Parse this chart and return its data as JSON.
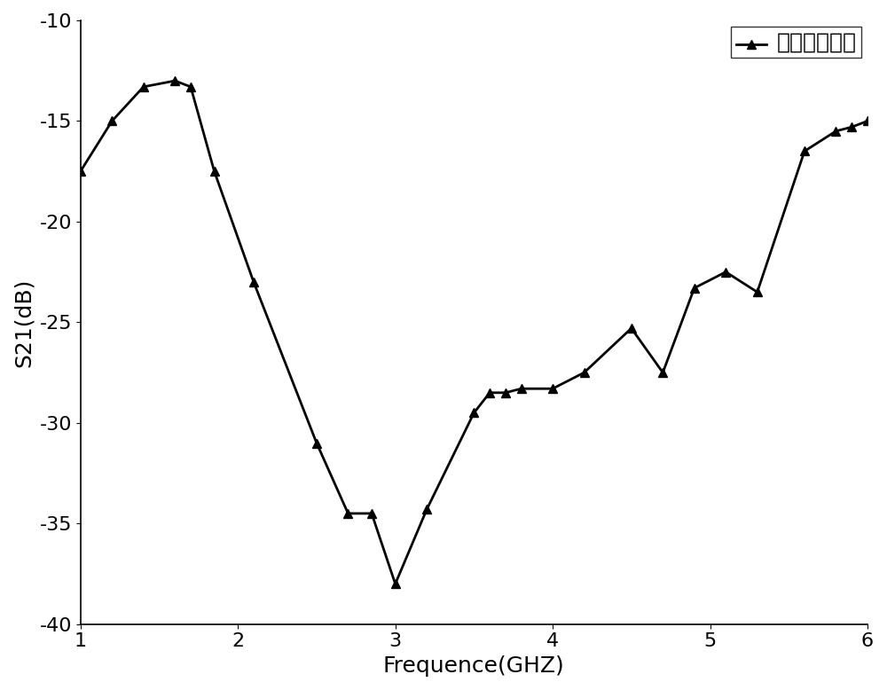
{
  "x": [
    1.0,
    1.2,
    1.4,
    1.6,
    1.7,
    1.85,
    2.1,
    2.5,
    2.7,
    2.85,
    3.0,
    3.2,
    3.5,
    3.6,
    3.7,
    3.8,
    4.0,
    4.2,
    4.5,
    4.7,
    4.9,
    5.1,
    5.3,
    5.6,
    5.8,
    5.9,
    6.0
  ],
  "y": [
    -17.5,
    -15.0,
    -13.3,
    -13.0,
    -13.3,
    -17.5,
    -23.0,
    -31.0,
    -34.5,
    -34.5,
    -38.0,
    -34.3,
    -29.5,
    -28.5,
    -28.5,
    -28.3,
    -28.3,
    -27.5,
    -25.3,
    -27.5,
    -23.3,
    -22.5,
    -23.5,
    -16.5,
    -15.5,
    -15.3,
    -15.0
  ],
  "line_color": "#000000",
  "marker": "^",
  "marker_size": 7,
  "line_width": 2.0,
  "xlabel": "Frequence(GHZ)",
  "ylabel": "S21(dB)",
  "xlim": [
    1,
    6
  ],
  "ylim": [
    -40,
    -10
  ],
  "xticks": [
    1,
    2,
    3,
    4,
    5,
    6
  ],
  "yticks": [
    -40,
    -35,
    -30,
    -25,
    -20,
    -15,
    -10
  ],
  "legend_label": "极化间隔离度",
  "legend_fontsize": 18,
  "axis_fontsize": 18,
  "tick_fontsize": 16,
  "background_color": "#ffffff",
  "figure_width": 10.0,
  "figure_height": 7.78
}
